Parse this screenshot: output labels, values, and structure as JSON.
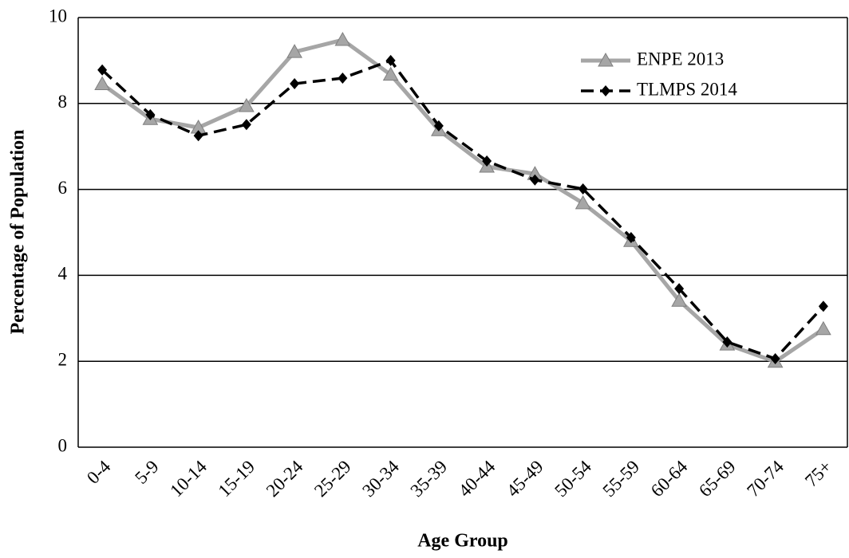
{
  "chart_data": {
    "type": "line",
    "x_label": "Age Group",
    "y_label": "Percentage of Population",
    "categories": [
      "0-4",
      "5-9",
      "10-14",
      "15-19",
      "20-24",
      "25-29",
      "30-34",
      "35-39",
      "40-44",
      "45-49",
      "50-54",
      "55-59",
      "60-64",
      "65-69",
      "70-74",
      "75+"
    ],
    "series": [
      {
        "name": "ENPE 2013",
        "color": "#a6a6a6",
        "marker": "triangle",
        "dash": false,
        "values": [
          8.45,
          7.64,
          7.44,
          7.94,
          9.2,
          9.48,
          8.67,
          7.38,
          6.53,
          6.36,
          5.68,
          4.8,
          3.41,
          2.39,
          1.99,
          2.75
        ]
      },
      {
        "name": "TLMPS 2014",
        "color": "#000000",
        "marker": "diamond",
        "dash": true,
        "values": [
          8.78,
          7.74,
          7.25,
          7.51,
          8.46,
          8.59,
          9.0,
          7.48,
          6.66,
          6.22,
          6.01,
          4.88,
          3.69,
          2.45,
          2.06,
          3.28
        ]
      }
    ],
    "ylim": [
      0,
      10
    ],
    "yticks": [
      0,
      2,
      4,
      6,
      8,
      10
    ],
    "grid": true,
    "legend": "top-right"
  }
}
